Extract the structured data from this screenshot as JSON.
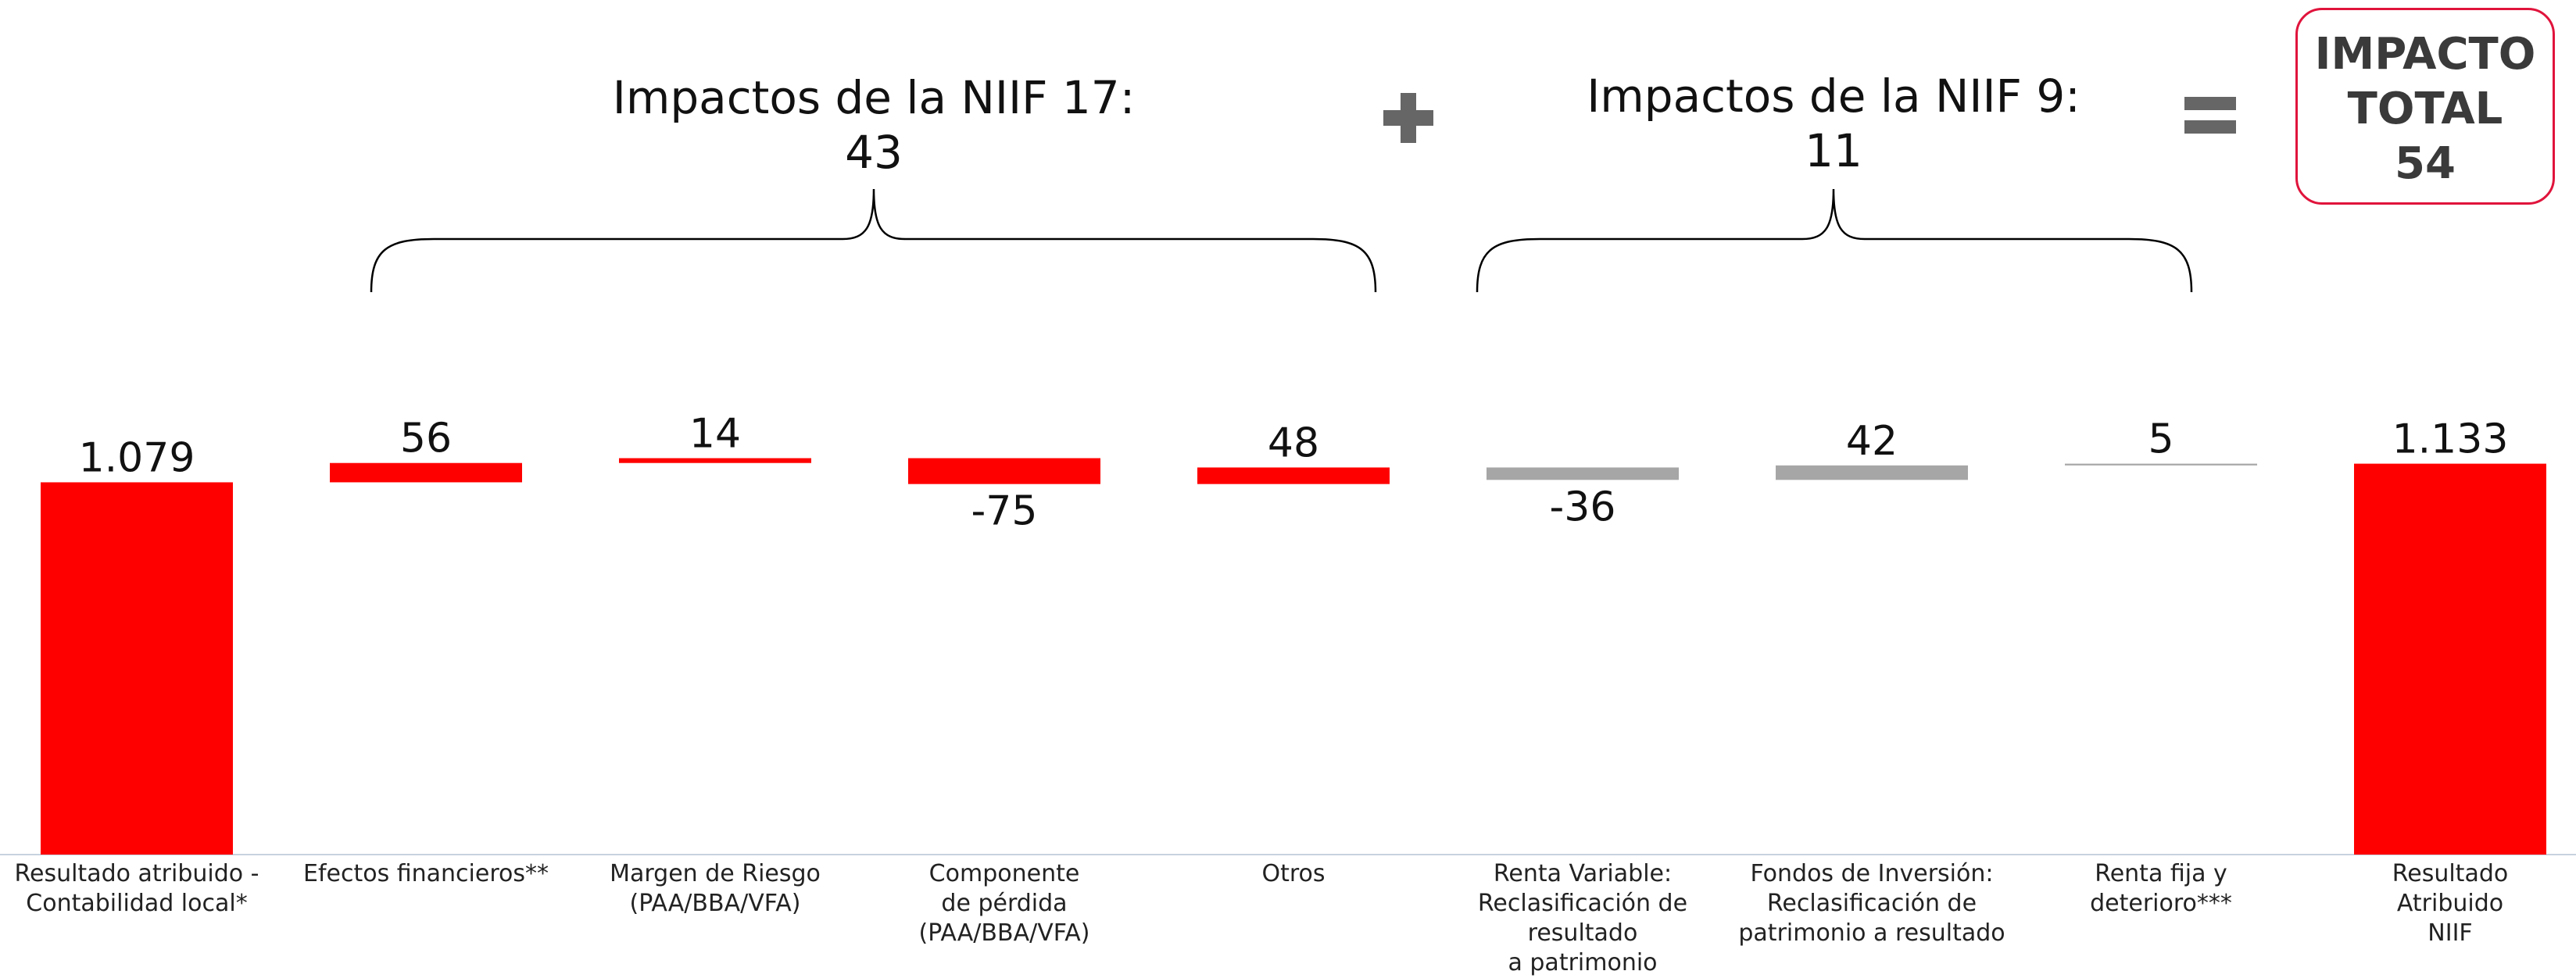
{
  "chart_data": {
    "type": "waterfall",
    "categories": [
      "Resultado atribuido -\nContabilidad local*",
      "Efectos financieros**",
      "Margen de Riesgo\n(PAA/BBA/VFA)",
      "Componente\nde pérdida\n(PAA/BBA/VFA)",
      "Otros",
      "Renta Variable:\nReclasificación de\nresultado\na patrimonio",
      "Fondos de Inversión:\nReclasificación de\npatrimonio a resultado",
      "Renta fija y\ndeterioro***",
      "Resultado\nAtribuido\nNIIF"
    ],
    "values": [
      1079,
      56,
      14,
      -75,
      48,
      -36,
      42,
      5,
      1133
    ],
    "value_labels": [
      "1.079",
      "56",
      "14",
      "-75",
      "48",
      "-36",
      "42",
      "5",
      "1.133"
    ],
    "measure": [
      "absolute",
      "relative",
      "relative",
      "relative",
      "relative",
      "relative",
      "relative",
      "relative",
      "absolute"
    ],
    "colors": [
      "#ff0000",
      "#ff0000",
      "#ff0000",
      "#ff0000",
      "#ff0000",
      "#a6a6a6",
      "#a6a6a6",
      "#a6a6a6",
      "#ff0000"
    ],
    "ylim": [
      0,
      1200
    ],
    "annotations": [
      {
        "text": "Impactos de la NIIF 17:",
        "value": 43
      },
      {
        "text": "Impactos de la NIIF 9:",
        "value": 11
      },
      {
        "text": "IMPACTO\nTOTAL",
        "value": 54
      }
    ]
  }
}
